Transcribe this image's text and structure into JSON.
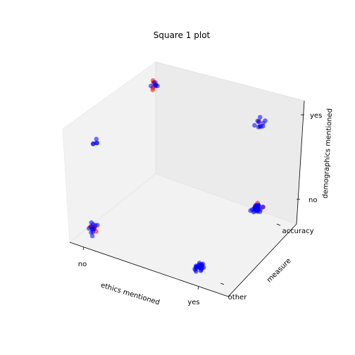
{
  "chart_data": {
    "type": "scatter",
    "projection": "3d",
    "title": "Square 1 plot",
    "xlabel": "ethics mentioned",
    "ylabel": "measure",
    "zlabel": "demographics mentioned",
    "x_ticks": [
      "no",
      "yes"
    ],
    "y_ticks": [
      "other",
      "accuracy"
    ],
    "z_ticks": [
      "no",
      "yes"
    ],
    "jitter": "points jittered around categorical positions",
    "series": [
      {
        "color": "#ff0000",
        "points": [
          {
            "x": "no",
            "y": "other",
            "z": "no",
            "count": 6
          },
          {
            "x": "yes",
            "y": "other",
            "z": "no",
            "count": 1
          },
          {
            "x": "no",
            "y": "accuracy",
            "z": "yes",
            "count": 7
          },
          {
            "x": "yes",
            "y": "accuracy",
            "z": "no",
            "count": 5
          },
          {
            "x": "yes",
            "y": "accuracy",
            "z": "yes",
            "count": 1
          }
        ]
      },
      {
        "color": "#0000ff",
        "points": [
          {
            "x": "no",
            "y": "other",
            "z": "no",
            "count": 12
          },
          {
            "x": "yes",
            "y": "other",
            "z": "no",
            "count": 26
          },
          {
            "x": "no",
            "y": "accuracy",
            "z": "yes",
            "count": 5
          },
          {
            "x": "yes",
            "y": "accuracy",
            "z": "no",
            "count": 30
          },
          {
            "x": "yes",
            "y": "accuracy",
            "z": "yes",
            "count": 10
          },
          {
            "x": "no",
            "y": "other",
            "z": "yes",
            "count": 5
          }
        ]
      }
    ]
  }
}
